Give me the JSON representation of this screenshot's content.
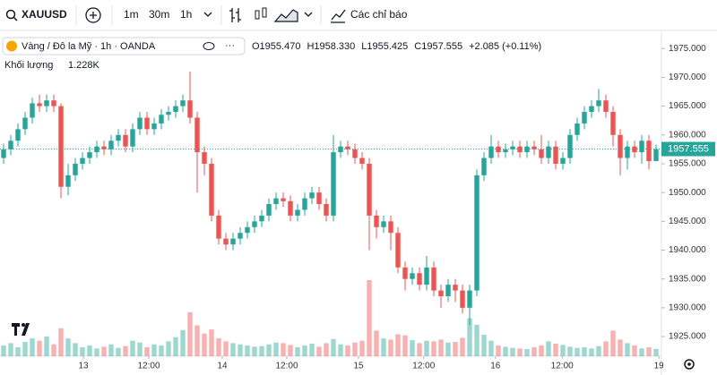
{
  "header": {
    "symbol": "XAUUSD",
    "intervals": [
      "1m",
      "30m",
      "1h"
    ],
    "indicators": "Các chỉ báo"
  },
  "chart_data": {
    "type": "candlestick",
    "legend_title": "Vàng / Đô la Mỹ · 1h · OANDA",
    "legend_values": [
      "O1955.470",
      "H1958.330",
      "L1955.425",
      "C1957.555",
      "+2.085 (+0.11%)"
    ],
    "volume_label": "Khối lượng",
    "volume_value_label": "1.228K",
    "last_price_label": "1957.555",
    "up_color": "#26a69a",
    "down_color": "#ef5350",
    "open": [
      1956,
      1957.5,
      1959,
      1961,
      1963,
      1965.5,
      1965,
      1966,
      1965,
      1951,
      1953,
      1955,
      1956,
      1957,
      1958,
      1957.5,
      1959,
      1960,
      1958,
      1961,
      1963,
      1961,
      1962,
      1963.5,
      1964,
      1965,
      1966,
      1963,
      1957,
      1955,
      1946,
      1942,
      1941,
      1942,
      1943,
      1944,
      1945,
      1946,
      1948,
      1949,
      1948.5,
      1946,
      1947,
      1949,
      1950,
      1948,
      1946,
      1957,
      1958,
      1957.5,
      1956,
      1955,
      1946,
      1944,
      1945,
      1943,
      1937,
      1935,
      1936,
      1934,
      1937,
      1933,
      1932,
      1934,
      1933,
      1930,
      1933,
      1953,
      1956,
      1958,
      1957,
      1957.5,
      1958,
      1957,
      1958,
      1957.5,
      1956,
      1958,
      1955,
      1956,
      1960,
      1962,
      1964,
      1965,
      1966,
      1964,
      1960,
      1956,
      1958,
      1957,
      1959,
      1955.47
    ],
    "high": [
      1958.5,
      1960,
      1962,
      1964,
      1966.5,
      1967,
      1967,
      1967,
      1965.5,
      1955,
      1956,
      1957,
      1958,
      1959,
      1959,
      1960,
      1961,
      1961,
      1962,
      1964,
      1964,
      1963,
      1964.5,
      1965,
      1966,
      1967,
      1971,
      1964,
      1958,
      1956,
      1947,
      1943,
      1943,
      1944,
      1945,
      1946,
      1947,
      1949,
      1950,
      1950,
      1949.5,
      1948,
      1950,
      1951,
      1951,
      1949,
      1960,
      1959,
      1959,
      1958.5,
      1957,
      1956,
      1947,
      1946,
      1946,
      1944,
      1938,
      1937,
      1937,
      1939,
      1938,
      1934,
      1935,
      1935,
      1934,
      1934,
      1954,
      1957,
      1960,
      1959,
      1958.5,
      1959,
      1959,
      1959,
      1959,
      1960,
      1959,
      1959,
      1957,
      1961,
      1963,
      1965,
      1966,
      1968,
      1967,
      1965,
      1961,
      1959,
      1959,
      1960,
      1960,
      1958.33
    ],
    "low": [
      1955,
      1956.5,
      1958,
      1960,
      1962,
      1964,
      1964,
      1964,
      1949,
      1949.5,
      1952,
      1954,
      1955,
      1956,
      1956.5,
      1956.5,
      1958,
      1957,
      1957,
      1960,
      1960,
      1960,
      1961,
      1962.5,
      1963,
      1964,
      1962,
      1950,
      1953,
      1945,
      1941,
      1940,
      1940,
      1941,
      1942,
      1943,
      1944,
      1945,
      1947,
      1947.5,
      1945,
      1945,
      1946,
      1948,
      1947,
      1945,
      1945,
      1956,
      1956.5,
      1955,
      1954,
      1940,
      1942,
      1943,
      1940,
      1936,
      1933,
      1934,
      1933,
      1933,
      1932,
      1930,
      1931,
      1931,
      1929,
      1927,
      1932,
      1952,
      1955,
      1956,
      1956,
      1956.5,
      1956,
      1956,
      1956.5,
      1955,
      1955,
      1954,
      1954,
      1955,
      1959,
      1961,
      1963,
      1964,
      1963,
      1958,
      1953,
      1954,
      1956,
      1955,
      1954,
      1955.425
    ],
    "close": [
      1957.5,
      1959,
      1961,
      1963,
      1965.5,
      1965,
      1966,
      1965,
      1951,
      1953,
      1955,
      1956,
      1957,
      1958,
      1957.5,
      1959,
      1960,
      1958,
      1961,
      1963,
      1961,
      1962,
      1963.5,
      1964,
      1965,
      1966,
      1963,
      1957,
      1955,
      1946,
      1942,
      1941,
      1942,
      1943,
      1944,
      1945,
      1946,
      1948,
      1949,
      1948.5,
      1946,
      1947,
      1949,
      1950,
      1948,
      1946,
      1957,
      1958,
      1957.5,
      1956,
      1955,
      1946,
      1944,
      1945,
      1943,
      1937,
      1935,
      1936,
      1934,
      1937,
      1933,
      1932,
      1934,
      1933,
      1930,
      1933,
      1953,
      1956,
      1958,
      1957,
      1957.5,
      1958,
      1957,
      1958,
      1957.5,
      1956,
      1958,
      1955,
      1956,
      1960,
      1962,
      1964,
      1965,
      1966,
      1964,
      1960,
      1956,
      1958,
      1957,
      1959,
      1955.47,
      1957.555
    ],
    "volume": [
      1800,
      2200,
      1500,
      2400,
      3000,
      2600,
      3300,
      2000,
      4700,
      3000,
      2200,
      1500,
      1800,
      1300,
      1600,
      2000,
      1400,
      1700,
      2600,
      2300,
      1500,
      2000,
      1800,
      2500,
      3200,
      4400,
      7400,
      5200,
      3800,
      4500,
      3000,
      2500,
      2200,
      2000,
      1800,
      1600,
      1700,
      2000,
      2300,
      2200,
      1900,
      1500,
      1800,
      2100,
      1600,
      2200,
      2900,
      2000,
      1800,
      2300,
      2600,
      12800,
      4300,
      3000,
      2800,
      3700,
      3500,
      2700,
      2200,
      2600,
      2500,
      2800,
      2300,
      2400,
      3100,
      6400,
      5300,
      3600,
      2600,
      1800,
      1600,
      1400,
      1300,
      1200,
      1500,
      1800,
      2500,
      2100,
      1900,
      1600,
      1400,
      1500,
      1300,
      1700,
      2500,
      4300,
      2800,
      2200,
      1800,
      1300,
      1500,
      1228
    ],
    "xlim": [
      -0.5,
      91.5
    ],
    "xticks": [
      {
        "value": 11.125,
        "label": "13"
      },
      {
        "value": 20.25,
        "label": "12:00"
      },
      {
        "value": 30.5,
        "label": "14"
      },
      {
        "value": 39.5,
        "label": "12:00"
      },
      {
        "value": 49.5,
        "label": "15"
      },
      {
        "value": 58.6,
        "label": "12:00"
      },
      {
        "value": 68.6,
        "label": "16"
      },
      {
        "value": 77.9,
        "label": "12:00"
      },
      {
        "value": 91.4,
        "label": "19"
      }
    ],
    "ylim": [
      1921.59,
      1977.99
    ],
    "yticks": [
      {
        "value": 1975,
        "label": "1975.000"
      },
      {
        "value": 1970,
        "label": "1970.000"
      },
      {
        "value": 1965,
        "label": "1965.000"
      },
      {
        "value": 1960,
        "label": "1960.000"
      },
      {
        "value": 1955,
        "label": "1955.000"
      },
      {
        "value": 1950,
        "label": "1950.000"
      },
      {
        "value": 1945,
        "label": "1945.000"
      },
      {
        "value": 1940,
        "label": "1940.000"
      },
      {
        "value": 1935,
        "label": "1935.000"
      },
      {
        "value": 1930,
        "label": "1930.000"
      },
      {
        "value": 1925,
        "label": "1925.000"
      }
    ],
    "grid": false
  }
}
